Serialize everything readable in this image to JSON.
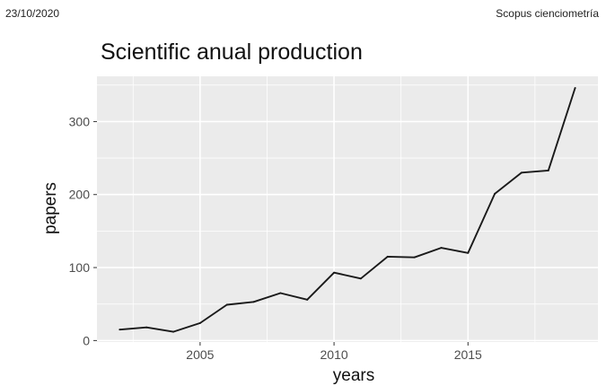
{
  "page_header": {
    "date": "23/10/2020",
    "source": "Scopus cienciometría"
  },
  "chart_data": {
    "type": "line",
    "title": "Scientific anual production",
    "xlabel": "years",
    "ylabel": "papers",
    "x": [
      2002,
      2003,
      2004,
      2005,
      2006,
      2007,
      2008,
      2009,
      2010,
      2011,
      2012,
      2013,
      2014,
      2015,
      2016,
      2017,
      2018,
      2019
    ],
    "series": [
      {
        "values": [
          15,
          18,
          12,
          24,
          49,
          53,
          65,
          56,
          93,
          85,
          115,
          114,
          127,
          120,
          201,
          230,
          233,
          346
        ]
      }
    ],
    "xlim": [
      2001.15,
      2019.85
    ],
    "ylim": [
      -2,
      362
    ],
    "x_ticks": [
      2005,
      2010,
      2015
    ],
    "y_ticks": [
      0,
      100,
      200,
      300
    ],
    "x_minor": [
      2002.5,
      2007.5,
      2012.5,
      2017.5
    ],
    "y_minor": [
      50,
      150,
      250,
      350
    ],
    "grid": true,
    "legend": "none",
    "colors": {
      "panel_bg": "#ebebeb",
      "grid": "#ffffff",
      "line": "#1a1a1a",
      "tick_text": "#4d4d4d",
      "tick_mark": "#333333"
    }
  }
}
